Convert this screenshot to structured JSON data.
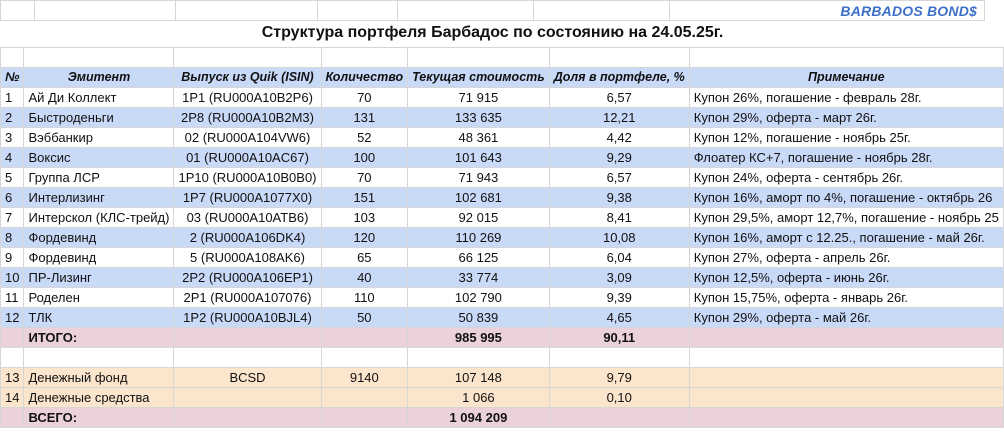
{
  "brand": "BARBADOS BOND$",
  "title": "Структура портфеля Барбадос по состоянию на 24.05.25г.",
  "headers": [
    "№",
    "Эмитент",
    "Выпуск из Quik (ISIN)",
    "Количество",
    "Текущая стоимость",
    "Доля в портфеле, %",
    "Примечание"
  ],
  "rows": [
    {
      "n": "1",
      "issuer": "Ай Ди Коллект",
      "issue": "1Р1 (RU000A10B2P6)",
      "qty": "70",
      "value": "71 915",
      "share": "6,57",
      "note": "Купон 26%, погашение - февраль 28г."
    },
    {
      "n": "2",
      "issuer": "Быстроденьги",
      "issue": "2Р8 (RU000A10B2M3)",
      "qty": "131",
      "value": "133 635",
      "share": "12,21",
      "note": "Купон 29%, оферта - март 26г."
    },
    {
      "n": "3",
      "issuer": "Вэббанкир",
      "issue": "02 (RU000A104VW6)",
      "qty": "52",
      "value": "48 361",
      "share": "4,42",
      "note": "Купон 12%, погашение - ноябрь 25г."
    },
    {
      "n": "4",
      "issuer": "Воксис",
      "issue": "01 (RU000A10AC67)",
      "qty": "100",
      "value": "101 643",
      "share": "9,29",
      "note": "Флоатер КС+7, погашение - ноябрь 28г."
    },
    {
      "n": "5",
      "issuer": "Группа ЛСР",
      "issue": "1Р10 (RU000A10B0B0)",
      "qty": "70",
      "value": "71 943",
      "share": "6,57",
      "note": "Купон 24%, оферта - сентябрь 26г."
    },
    {
      "n": "6",
      "issuer": "Интерлизинг",
      "issue": "1Р7 (RU000A1077X0)",
      "qty": "151",
      "value": "102 681",
      "share": "9,38",
      "note": "Купон 16%, аморт по 4%, погашение - октябрь 26"
    },
    {
      "n": "7",
      "issuer": "Интерскол (КЛС-трейд)",
      "issue": "03 (RU000A10ATB6)",
      "qty": "103",
      "value": "92 015",
      "share": "8,41",
      "note": "Купон 29,5%, аморт 12,7%, погашение - ноябрь 25"
    },
    {
      "n": "8",
      "issuer": "Фордевинд",
      "issue": "2 (RU000A106DK4)",
      "qty": "120",
      "value": "110 269",
      "share": "10,08",
      "note": "Купон 16%, аморт с 12.25., погашение - май 26г."
    },
    {
      "n": "9",
      "issuer": "Фордевинд",
      "issue": "5 (RU000A108AK6)",
      "qty": "65",
      "value": "66 125",
      "share": "6,04",
      "note": "Купон 27%, оферта - апрель 26г."
    },
    {
      "n": "10",
      "issuer": "ПР-Лизинг",
      "issue": "2Р2 (RU000A106EP1)",
      "qty": "40",
      "value": "33 774",
      "share": "3,09",
      "note": "Купон 12,5%, оферта - июнь 26г."
    },
    {
      "n": "11",
      "issuer": "Роделен",
      "issue": "2Р1 (RU000A107076)",
      "qty": "110",
      "value": "102 790",
      "share": "9,39",
      "note": "Купон 15,75%, оферта - январь 26г."
    },
    {
      "n": "12",
      "issuer": "ТЛК",
      "issue": "1Р2 (RU000A10BJL4)",
      "qty": "50",
      "value": "50 839",
      "share": "4,65",
      "note": "Купон 29%, оферта - май 26г."
    }
  ],
  "total": {
    "label": "ИТОГО:",
    "value": "985 995",
    "share": "90,11"
  },
  "cash_rows": [
    {
      "n": "13",
      "issuer": "Денежный фонд",
      "issue": "BCSD",
      "qty": "9140",
      "value": "107 148",
      "share": "9,79"
    },
    {
      "n": "14",
      "issuer": "Денежные средства",
      "issue": "",
      "qty": "",
      "value": "1 066",
      "share": "0,10"
    }
  ],
  "grand_total": {
    "label": "ВСЕГО:",
    "value": "1 094 209"
  },
  "colors": {
    "header_blue": "#c9daf8",
    "total_pink": "#ead1dc",
    "cash_peach": "#fce5cd",
    "brand": "#3d6fc9"
  }
}
